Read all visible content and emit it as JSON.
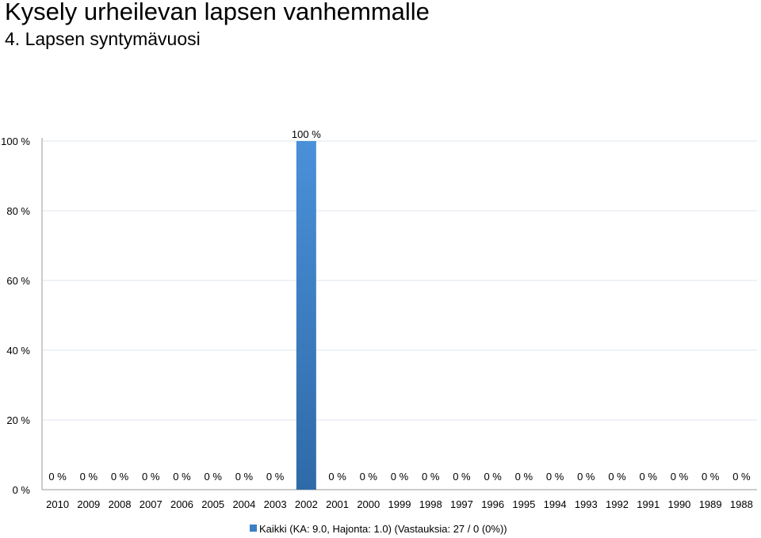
{
  "title": "Kysely urheilevan lapsen vanhemmalle",
  "subtitle": "4. Lapsen syntymävuosi",
  "colors": {
    "bar_top": "#4a90d9",
    "bar_bottom": "#2f6aa8",
    "grid": "#dfe6ee",
    "axis": "#999999",
    "legend_swatch": "#3d7fc4"
  },
  "chart_data": {
    "type": "bar",
    "categories": [
      "2010",
      "2009",
      "2008",
      "2007",
      "2006",
      "2005",
      "2004",
      "2003",
      "2002",
      "2001",
      "2000",
      "1999",
      "1998",
      "1997",
      "1996",
      "1995",
      "1994",
      "1993",
      "1992",
      "1991",
      "1990",
      "1989",
      "1988"
    ],
    "series": [
      {
        "name": "Kaikki (KA: 9.0, Hajonta: 1.0) (Vastauksia: 27 / 0 (0%))",
        "values": [
          0,
          0,
          0,
          0,
          0,
          0,
          0,
          0,
          100,
          0,
          0,
          0,
          0,
          0,
          0,
          0,
          0,
          0,
          0,
          0,
          0,
          0,
          0
        ],
        "labels": [
          "0 %",
          "0 %",
          "0 %",
          "0 %",
          "0 %",
          "0 %",
          "0 %",
          "0 %",
          "100 %",
          "0 %",
          "0 %",
          "0 %",
          "0 %",
          "0 %",
          "0 %",
          "0 %",
          "0 %",
          "0 %",
          "0 %",
          "0 %",
          "0 %",
          "0 %",
          "0 %"
        ]
      }
    ],
    "ylim": [
      0,
      100
    ],
    "yticks": [
      0,
      20,
      40,
      60,
      80,
      100
    ],
    "ytick_labels": [
      "0 %",
      "20 %",
      "40 %",
      "60 %",
      "80 %",
      "100 %"
    ],
    "grid": true,
    "legend_position": "bottom"
  }
}
